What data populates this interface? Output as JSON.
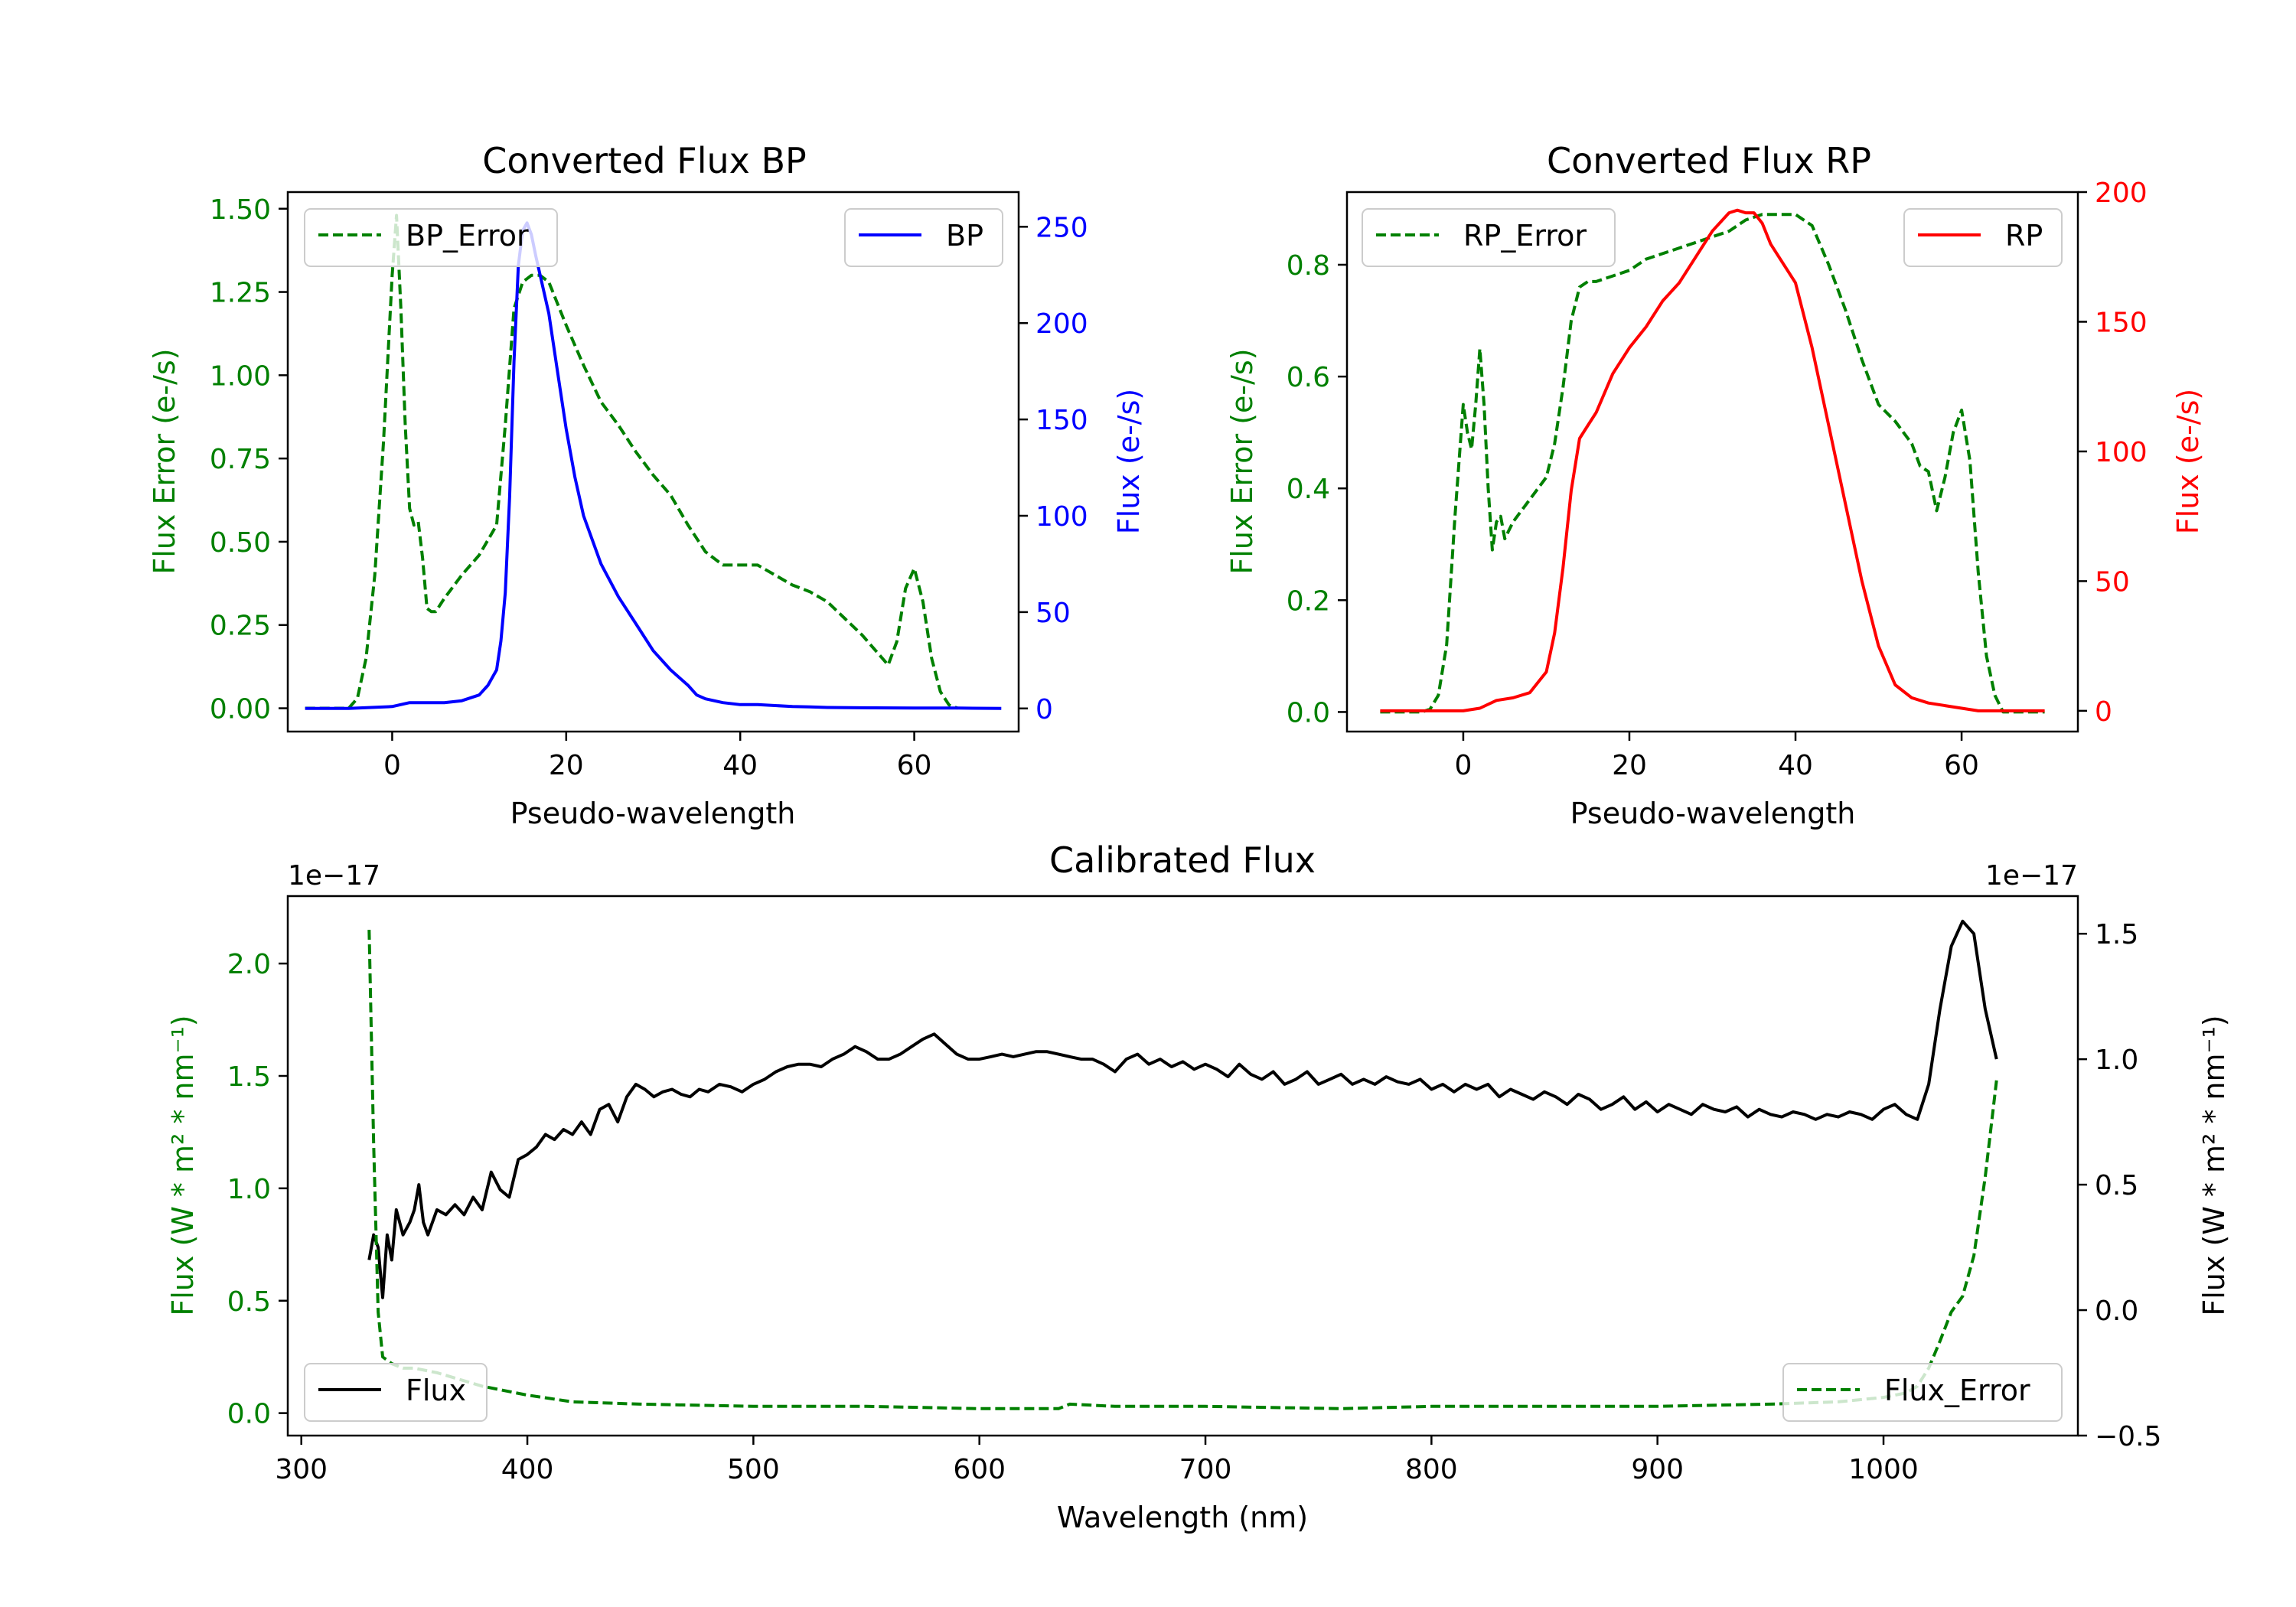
{
  "colors": {
    "bp": "#0000ff",
    "rp": "#ff0000",
    "error": "#008000",
    "flux": "#000000",
    "axis": "#000000"
  },
  "chart_data": [
    {
      "id": "bp",
      "type": "line",
      "title": "Converted Flux BP",
      "xlabel": "Pseudo-wavelength",
      "ylabel_left": "Flux Error (e-/s)",
      "ylabel_right": "Flux (e-/s)",
      "xlim": [
        -12,
        72
      ],
      "ylim_left": [
        -0.07,
        1.55
      ],
      "ylim_right": [
        -12,
        268
      ],
      "xticks": [
        0,
        20,
        40,
        60
      ],
      "yticks_left": [
        "0.00",
        "0.25",
        "0.50",
        "0.75",
        "1.00",
        "1.25",
        "1.50"
      ],
      "yticks_right": [
        "0",
        "50",
        "100",
        "150",
        "200",
        "250"
      ],
      "legend_left": "BP_Error",
      "legend_right": "BP",
      "series": [
        {
          "name": "BP_Error",
          "axis": "left",
          "style": "dashed",
          "color": "#008000",
          "x": [
            -10,
            -5,
            -4,
            -3,
            -2,
            -1,
            0,
            0.5,
            1,
            1.5,
            2,
            2.5,
            3,
            3.5,
            4,
            4.5,
            5,
            6,
            8,
            10,
            12,
            13,
            14,
            15,
            16,
            17,
            18,
            20,
            22,
            24,
            26,
            28,
            30,
            32,
            34,
            36,
            38,
            40,
            42,
            44,
            46,
            48,
            50,
            52,
            54,
            56,
            57,
            58,
            59,
            60,
            61,
            62,
            63,
            64,
            65
          ],
          "y": [
            0,
            0,
            0.03,
            0.15,
            0.4,
            0.8,
            1.3,
            1.48,
            1.2,
            0.85,
            0.6,
            0.55,
            0.56,
            0.45,
            0.3,
            0.29,
            0.29,
            0.33,
            0.4,
            0.46,
            0.55,
            0.85,
            1.2,
            1.28,
            1.3,
            1.3,
            1.28,
            1.15,
            1.03,
            0.92,
            0.85,
            0.77,
            0.7,
            0.64,
            0.55,
            0.47,
            0.43,
            0.43,
            0.43,
            0.4,
            0.37,
            0.35,
            0.32,
            0.27,
            0.22,
            0.16,
            0.13,
            0.2,
            0.36,
            0.42,
            0.32,
            0.15,
            0.05,
            0.01,
            0
          ]
        },
        {
          "name": "BP",
          "axis": "right",
          "style": "solid",
          "color": "#0000ff",
          "x": [
            -10,
            -5,
            0,
            2,
            4,
            6,
            8,
            10,
            11,
            12,
            12.5,
            13,
            13.5,
            14,
            14.5,
            15,
            15.5,
            16,
            16.5,
            17,
            18,
            19,
            20,
            21,
            22,
            24,
            26,
            28,
            30,
            32,
            34,
            35,
            36,
            37,
            38,
            40,
            42,
            44,
            46,
            48,
            50,
            55,
            60,
            65,
            70
          ],
          "y": [
            0,
            0,
            1,
            3,
            3,
            3,
            4,
            7,
            12,
            20,
            35,
            60,
            110,
            180,
            230,
            248,
            252,
            246,
            235,
            225,
            205,
            175,
            145,
            120,
            100,
            75,
            58,
            44,
            30,
            20,
            12,
            7,
            5,
            4,
            3,
            2,
            2,
            1.5,
            1,
            0.8,
            0.5,
            0.3,
            0.2,
            0.2,
            0
          ]
        }
      ]
    },
    {
      "id": "rp",
      "type": "line",
      "title": "Converted Flux RP",
      "xlabel": "Pseudo-wavelength",
      "ylabel_left": "Flux Error (e-/s)",
      "ylabel_right": "Flux (e-/s)",
      "xlim": [
        -14,
        74
      ],
      "ylim_left": [
        -0.035,
        0.93
      ],
      "ylim_right": [
        -8,
        200
      ],
      "xticks": [
        0,
        20,
        40,
        60
      ],
      "yticks_left": [
        "0.0",
        "0.2",
        "0.4",
        "0.6",
        "0.8"
      ],
      "yticks_right": [
        "0",
        "50",
        "100",
        "150",
        "200"
      ],
      "legend_left": "RP_Error",
      "legend_right": "RP",
      "series": [
        {
          "name": "RP_Error",
          "axis": "left",
          "style": "dashed",
          "color": "#008000",
          "x": [
            -10,
            -5,
            -4,
            -3,
            -2,
            -1,
            0,
            0.5,
            1,
            1.5,
            2,
            2.5,
            3,
            3.5,
            4,
            4.5,
            5,
            6,
            8,
            10,
            11,
            12,
            13,
            14,
            15,
            16,
            18,
            20,
            22,
            24,
            26,
            28,
            30,
            32,
            34,
            36,
            38,
            40,
            42,
            44,
            46,
            48,
            50,
            52,
            54,
            55,
            56,
            57,
            58,
            59,
            60,
            61,
            62,
            63,
            64,
            65,
            68,
            70
          ],
          "y": [
            0,
            0,
            0.005,
            0.03,
            0.12,
            0.35,
            0.55,
            0.5,
            0.47,
            0.55,
            0.65,
            0.55,
            0.4,
            0.29,
            0.34,
            0.35,
            0.31,
            0.34,
            0.38,
            0.42,
            0.48,
            0.58,
            0.7,
            0.76,
            0.77,
            0.77,
            0.78,
            0.79,
            0.81,
            0.82,
            0.83,
            0.84,
            0.85,
            0.86,
            0.88,
            0.89,
            0.89,
            0.89,
            0.87,
            0.8,
            0.72,
            0.63,
            0.55,
            0.52,
            0.48,
            0.44,
            0.43,
            0.36,
            0.42,
            0.5,
            0.54,
            0.45,
            0.25,
            0.1,
            0.03,
            0,
            0,
            0
          ]
        },
        {
          "name": "RP",
          "axis": "right",
          "style": "solid",
          "color": "#ff0000",
          "x": [
            -10,
            -5,
            0,
            2,
            4,
            6,
            8,
            10,
            11,
            12,
            13,
            14,
            15,
            16,
            18,
            20,
            22,
            24,
            26,
            28,
            30,
            32,
            33,
            34,
            35,
            36,
            37,
            38,
            40,
            42,
            44,
            46,
            48,
            50,
            52,
            54,
            56,
            58,
            60,
            62,
            65,
            70
          ],
          "y": [
            0,
            0,
            0,
            1,
            4,
            5,
            7,
            15,
            30,
            55,
            85,
            105,
            110,
            115,
            130,
            140,
            148,
            158,
            165,
            175,
            185,
            192,
            193,
            192,
            192,
            188,
            180,
            175,
            165,
            140,
            110,
            80,
            50,
            25,
            10,
            5,
            3,
            2,
            1,
            0,
            0,
            0
          ]
        }
      ]
    },
    {
      "id": "calibrated",
      "type": "line",
      "title": "Calibrated Flux",
      "xlabel": "Wavelength (nm)",
      "ylabel_left": "Flux (W * m² * nm⁻¹)",
      "ylabel_right": "Flux (W * m² * nm⁻¹)",
      "offset_left": "1e−17",
      "offset_right": "1e−17",
      "xlim": [
        294,
        1086
      ],
      "ylim_left": [
        -0.1,
        2.3
      ],
      "ylim_right": [
        -0.5,
        1.65
      ],
      "xticks": [
        300,
        400,
        500,
        600,
        700,
        800,
        900,
        1000
      ],
      "yticks_left": [
        "0.0",
        "0.5",
        "1.0",
        "1.5",
        "2.0"
      ],
      "yticks_right": [
        "−0.5",
        "0.0",
        "0.5",
        "1.0",
        "1.5"
      ],
      "legend_left": "Flux",
      "legend_right": "Flux_Error",
      "series": [
        {
          "name": "Flux",
          "axis": "right",
          "style": "solid",
          "color": "#000000",
          "x": [
            330,
            332,
            334,
            336,
            338,
            340,
            342,
            345,
            348,
            350,
            352,
            354,
            356,
            360,
            364,
            368,
            372,
            376,
            380,
            384,
            388,
            392,
            396,
            400,
            404,
            408,
            412,
            416,
            420,
            424,
            428,
            432,
            436,
            440,
            444,
            448,
            452,
            456,
            460,
            464,
            468,
            472,
            476,
            480,
            485,
            490,
            495,
            500,
            505,
            510,
            515,
            520,
            525,
            530,
            535,
            540,
            545,
            550,
            555,
            560,
            565,
            570,
            575,
            580,
            585,
            590,
            595,
            600,
            605,
            610,
            615,
            620,
            625,
            630,
            635,
            640,
            645,
            650,
            655,
            660,
            665,
            670,
            675,
            680,
            685,
            690,
            695,
            700,
            705,
            710,
            715,
            720,
            725,
            730,
            735,
            740,
            745,
            750,
            755,
            760,
            765,
            770,
            775,
            780,
            785,
            790,
            795,
            800,
            805,
            810,
            815,
            820,
            825,
            830,
            835,
            840,
            845,
            850,
            855,
            860,
            865,
            870,
            875,
            880,
            885,
            890,
            895,
            900,
            905,
            910,
            915,
            920,
            925,
            930,
            935,
            940,
            945,
            950,
            955,
            960,
            965,
            970,
            975,
            980,
            985,
            990,
            995,
            1000,
            1005,
            1010,
            1015,
            1020,
            1025,
            1030,
            1035,
            1040,
            1045,
            1050
          ],
          "y": [
            0.2,
            0.3,
            0.25,
            0.05,
            0.3,
            0.2,
            0.4,
            0.3,
            0.35,
            0.4,
            0.5,
            0.35,
            0.3,
            0.4,
            0.38,
            0.42,
            0.38,
            0.45,
            0.4,
            0.55,
            0.48,
            0.45,
            0.6,
            0.62,
            0.65,
            0.7,
            0.68,
            0.72,
            0.7,
            0.75,
            0.7,
            0.8,
            0.82,
            0.75,
            0.85,
            0.9,
            0.88,
            0.85,
            0.87,
            0.88,
            0.86,
            0.85,
            0.88,
            0.87,
            0.9,
            0.89,
            0.87,
            0.9,
            0.92,
            0.95,
            0.97,
            0.98,
            0.98,
            0.97,
            1.0,
            1.02,
            1.05,
            1.03,
            1.0,
            1.0,
            1.02,
            1.05,
            1.08,
            1.1,
            1.06,
            1.02,
            1.0,
            1.0,
            1.01,
            1.02,
            1.01,
            1.02,
            1.03,
            1.03,
            1.02,
            1.01,
            1.0,
            1.0,
            0.98,
            0.95,
            1.0,
            1.02,
            0.98,
            1.0,
            0.97,
            0.99,
            0.96,
            0.98,
            0.96,
            0.93,
            0.98,
            0.94,
            0.92,
            0.95,
            0.9,
            0.92,
            0.95,
            0.9,
            0.92,
            0.94,
            0.9,
            0.92,
            0.9,
            0.93,
            0.91,
            0.9,
            0.92,
            0.88,
            0.9,
            0.87,
            0.9,
            0.88,
            0.9,
            0.85,
            0.88,
            0.86,
            0.84,
            0.87,
            0.85,
            0.82,
            0.86,
            0.84,
            0.8,
            0.82,
            0.85,
            0.8,
            0.83,
            0.79,
            0.82,
            0.8,
            0.78,
            0.82,
            0.8,
            0.79,
            0.81,
            0.77,
            0.8,
            0.78,
            0.77,
            0.79,
            0.78,
            0.76,
            0.78,
            0.77,
            0.79,
            0.78,
            0.76,
            0.8,
            0.82,
            0.78,
            0.76,
            0.9,
            1.2,
            1.45,
            1.55,
            1.5,
            1.2,
            1.0
          ]
        },
        {
          "name": "Flux_Error",
          "axis": "left",
          "style": "dashed",
          "color": "#008000",
          "x": [
            330,
            332,
            334,
            336,
            340,
            345,
            350,
            360,
            370,
            380,
            390,
            400,
            420,
            450,
            500,
            550,
            600,
            635,
            640,
            660,
            700,
            760,
            800,
            850,
            900,
            950,
            980,
            1000,
            1010,
            1015,
            1020,
            1025,
            1030,
            1035,
            1040,
            1045,
            1050
          ],
          "y": [
            2.15,
            1.2,
            0.45,
            0.25,
            0.22,
            0.2,
            0.2,
            0.18,
            0.15,
            0.12,
            0.1,
            0.08,
            0.05,
            0.04,
            0.03,
            0.03,
            0.02,
            0.02,
            0.04,
            0.03,
            0.03,
            0.02,
            0.03,
            0.03,
            0.03,
            0.04,
            0.05,
            0.07,
            0.09,
            0.12,
            0.2,
            0.32,
            0.45,
            0.52,
            0.7,
            1.05,
            1.48
          ]
        }
      ]
    }
  ]
}
